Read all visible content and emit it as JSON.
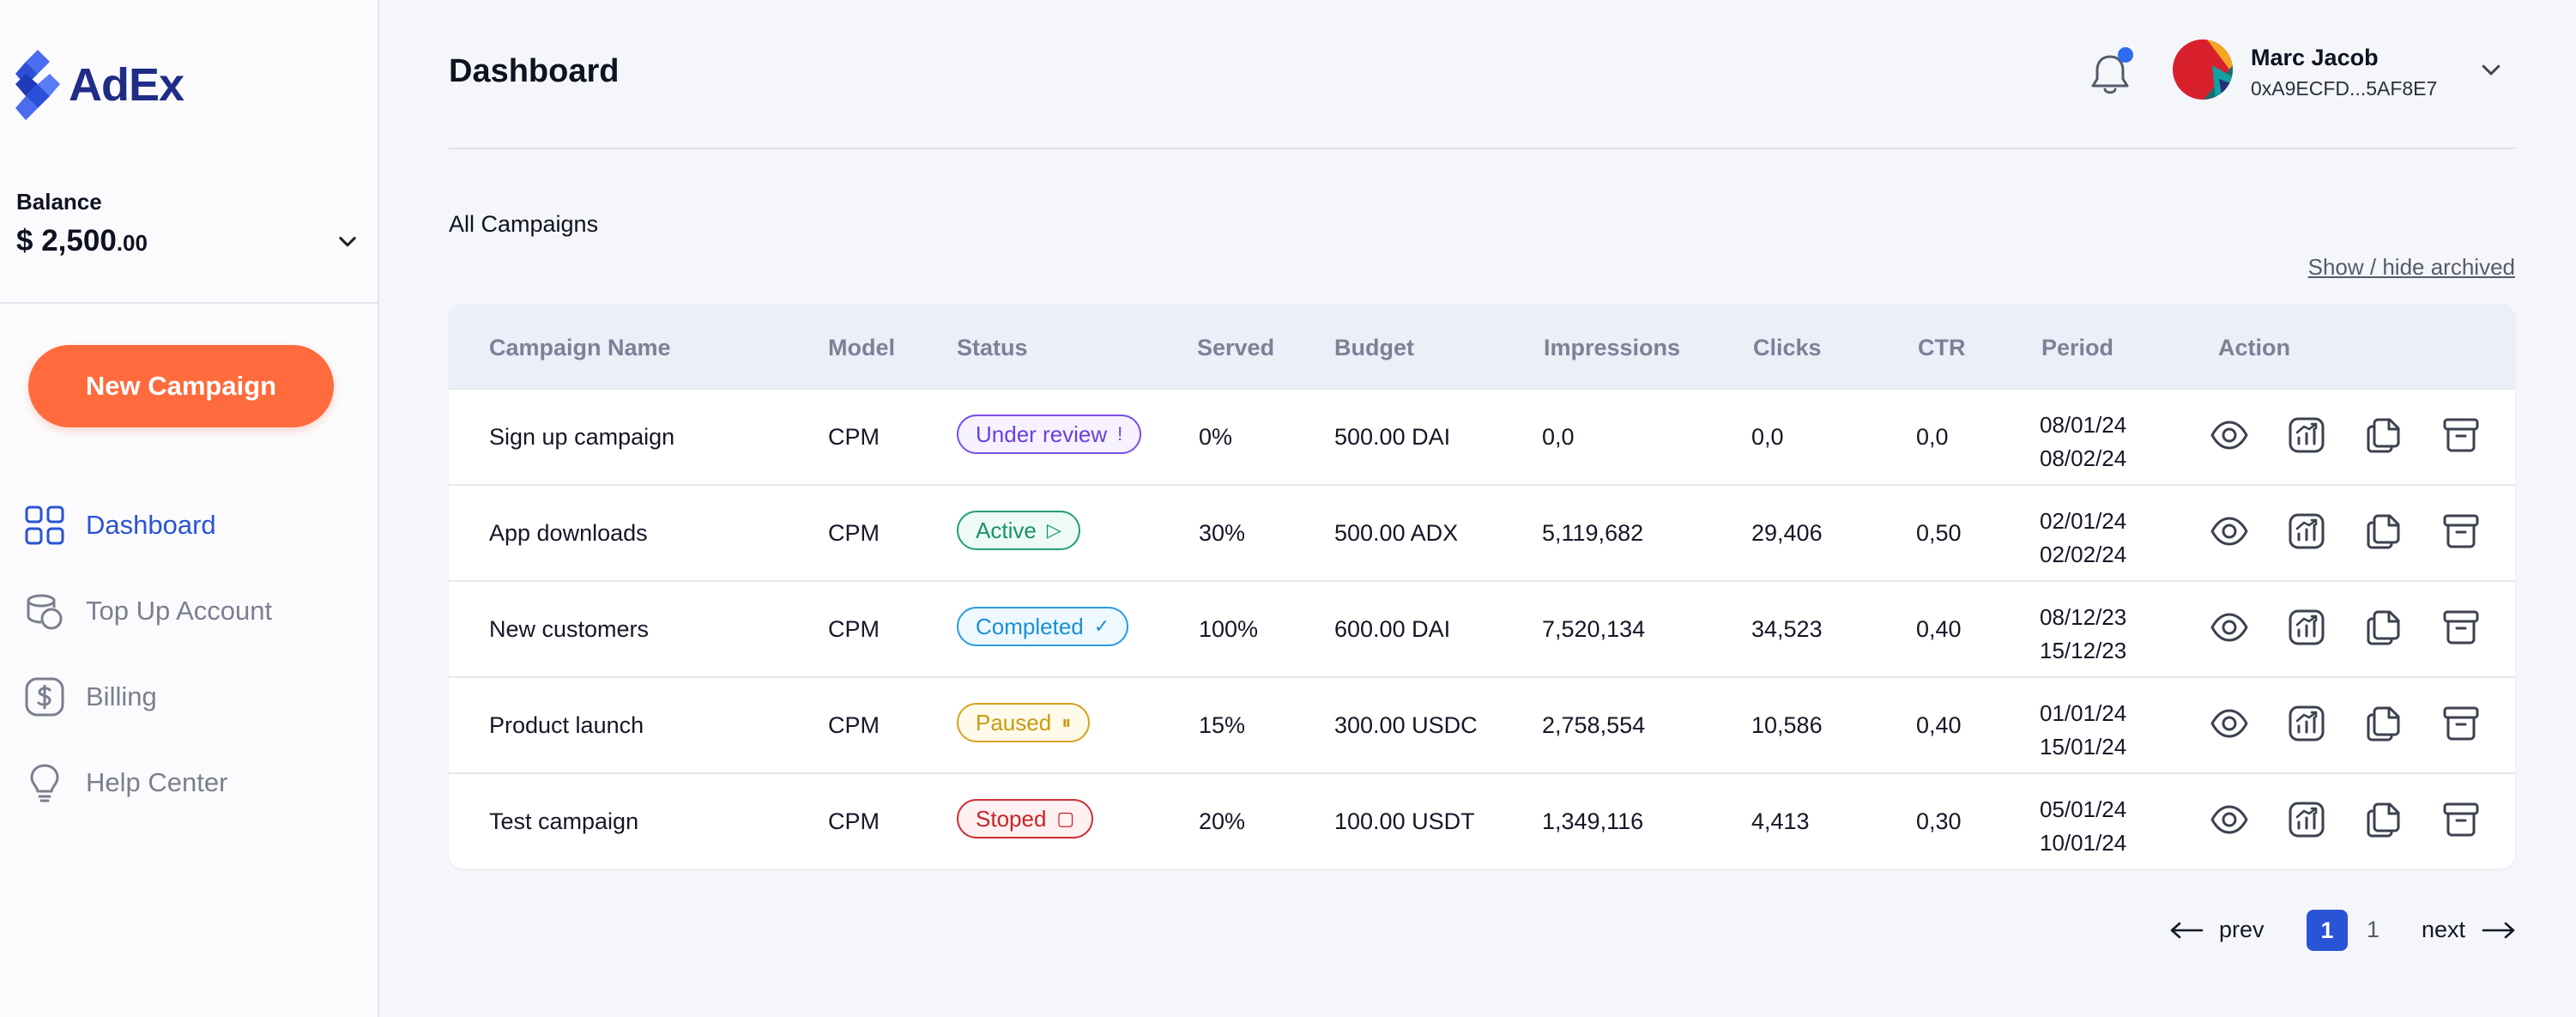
{
  "brand": {
    "name": "AdEx"
  },
  "balance": {
    "label": "Balance",
    "currency": "$",
    "whole": "2,500",
    "cents": ".00"
  },
  "sidebar": {
    "new_campaign_label": "New Campaign",
    "items": [
      {
        "label": "Dashboard",
        "icon": "grid-icon",
        "active": true
      },
      {
        "label": "Top Up Account",
        "icon": "coins-icon",
        "active": false
      },
      {
        "label": "Billing",
        "icon": "dollar-icon",
        "active": false
      },
      {
        "label": "Help Center",
        "icon": "lightbulb-icon",
        "active": false
      }
    ]
  },
  "header": {
    "title": "Dashboard",
    "user_name": "Marc Jacob",
    "user_address": "0xA9ECFD...5AF8E7"
  },
  "campaigns": {
    "section_title": "All Campaigns",
    "archived_toggle": "Show / hide archived",
    "columns": [
      "Campaign Name",
      "Model",
      "Status",
      "Served",
      "Budget",
      "Impressions",
      "Clicks",
      "CTR",
      "Period",
      "Action"
    ],
    "rows": [
      {
        "name": "Sign up campaign",
        "model": "CPM",
        "status": "Under review",
        "status_icon": "!",
        "served": "0%",
        "budget": "500.00 DAI",
        "impressions": "0,0",
        "clicks": "0,0",
        "ctr": "0,0",
        "period_start": "08/01/24",
        "period_end": "08/02/24"
      },
      {
        "name": "App downloads",
        "model": "CPM",
        "status": "Active",
        "status_icon": "▷",
        "served": "30%",
        "budget": "500.00 ADX",
        "impressions": "5,119,682",
        "clicks": "29,406",
        "ctr": "0,50",
        "period_start": "02/01/24",
        "period_end": "02/02/24"
      },
      {
        "name": "New customers",
        "model": "CPM",
        "status": "Completed",
        "status_icon": "✓",
        "served": "100%",
        "budget": "600.00 DAI",
        "impressions": "7,520,134",
        "clicks": "34,523",
        "ctr": "0,40",
        "period_start": "08/12/23",
        "period_end": "15/12/23"
      },
      {
        "name": "Product launch",
        "model": "CPM",
        "status": "Paused",
        "status_icon": "⏸",
        "served": "15%",
        "budget": "300.00 USDC",
        "impressions": "2,758,554",
        "clicks": "10,586",
        "ctr": "0,40",
        "period_start": "01/01/24",
        "period_end": "15/01/24"
      },
      {
        "name": "Test campaign",
        "model": "CPM",
        "status": "Stoped",
        "status_icon": "▢",
        "served": "20%",
        "budget": "100.00 USDT",
        "impressions": "1,349,116",
        "clicks": "4,413",
        "ctr": "0,30",
        "period_start": "05/01/24",
        "period_end": "10/01/24"
      }
    ],
    "status_colors": {
      "Under review": {
        "text": "#6b3fe0",
        "border": "#7a4fe8",
        "bg": "#f6f2ff"
      },
      "Active": {
        "text": "#17926a",
        "border": "#23a07a",
        "bg": "#eefaf5"
      },
      "Completed": {
        "text": "#1a8fd4",
        "border": "#2a9de0",
        "bg": "#eef8ff"
      },
      "Paused": {
        "text": "#c99a12",
        "border": "#d4a520",
        "bg": "#fffaea"
      },
      "Stoped": {
        "text": "#c8242b",
        "border": "#d12f36",
        "bg": "#fff1f1"
      }
    },
    "action_icons": [
      "eye-icon",
      "chart-icon",
      "duplicate-icon",
      "archive-icon"
    ]
  },
  "pagination": {
    "prev": "prev",
    "current": "1",
    "total": "1",
    "next": "next"
  },
  "colors": {
    "accent": "#2a54d6",
    "cta": "#ff6b3d",
    "brand": "#1f2d86"
  }
}
